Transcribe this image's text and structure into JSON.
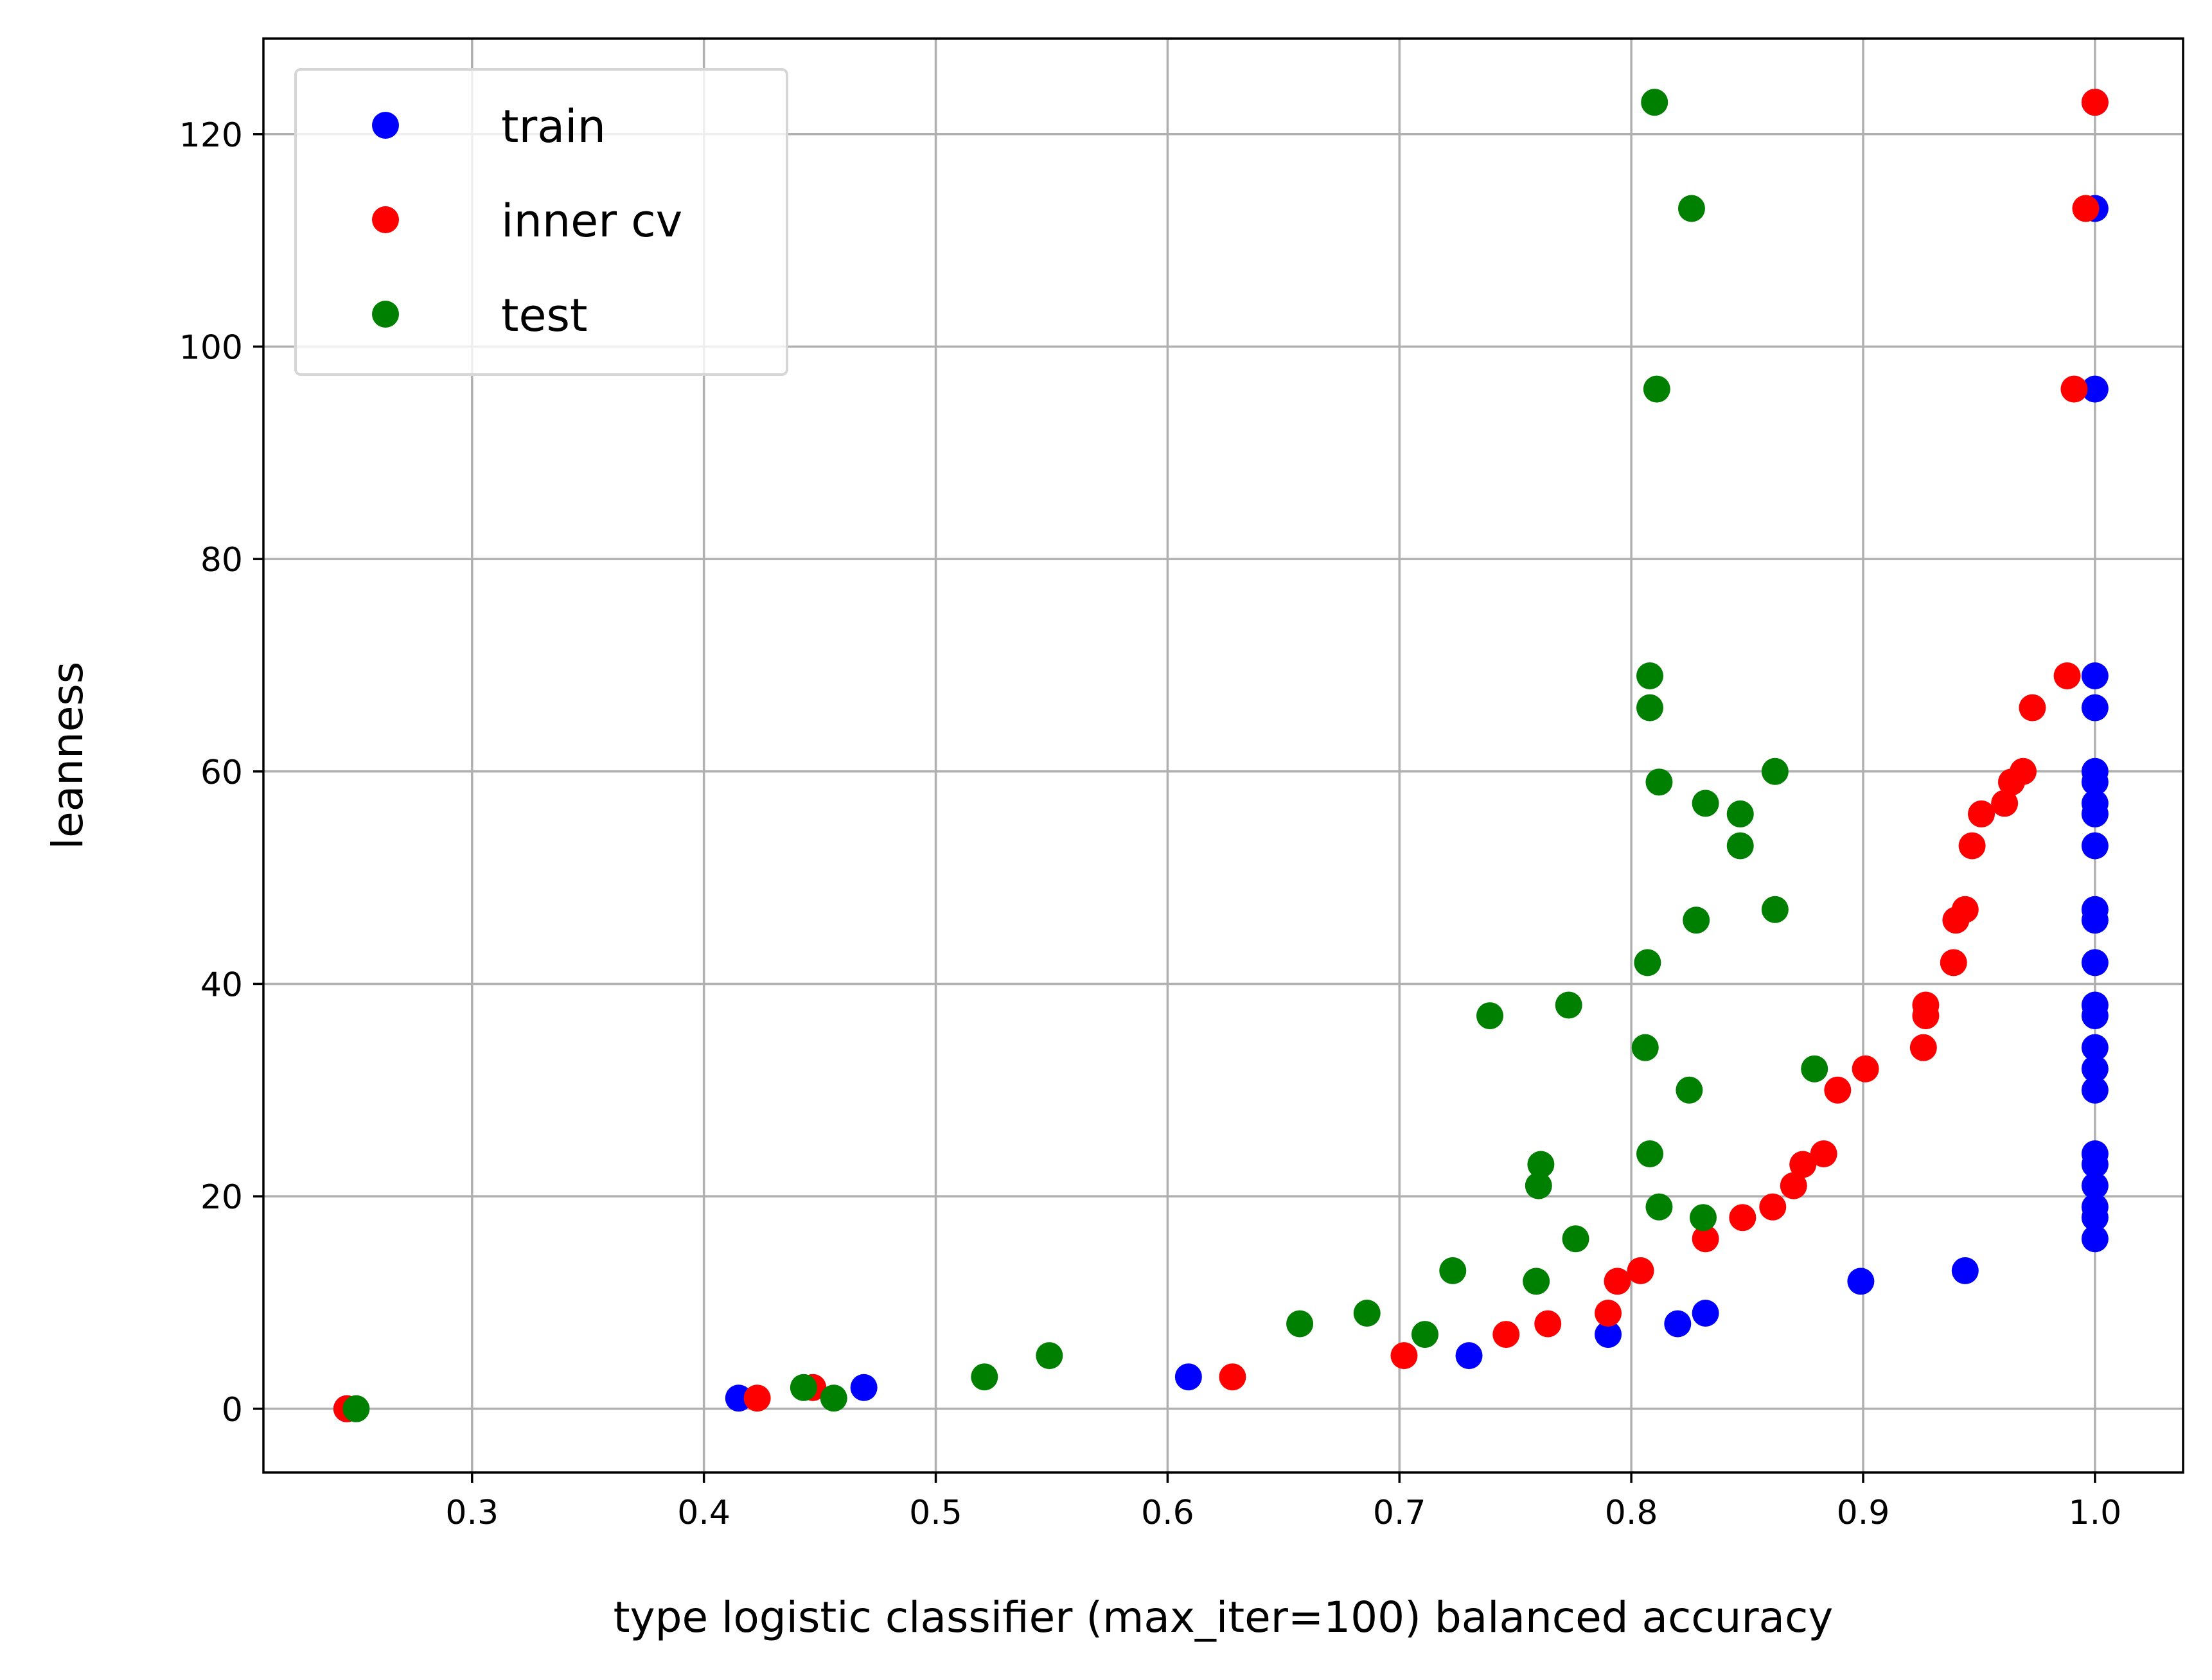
{
  "chart_data": {
    "type": "scatter",
    "xlabel": "type logistic classifier (max_iter=100) balanced accuracy",
    "ylabel": "leanness",
    "xlim": [
      0.21,
      1.038
    ],
    "ylim": [
      -6,
      129
    ],
    "xticks": [
      0.3,
      0.4,
      0.5,
      0.6,
      0.7,
      0.8,
      0.9,
      1.0
    ],
    "xtick_labels": [
      "0.3",
      "0.4",
      "0.5",
      "0.6",
      "0.7",
      "0.8",
      "0.9",
      "1.0"
    ],
    "yticks": [
      0,
      20,
      40,
      60,
      80,
      100,
      120
    ],
    "ytick_labels": [
      "0",
      "20",
      "40",
      "60",
      "80",
      "100",
      "120"
    ],
    "grid": true,
    "legend_position": "top-left",
    "series": [
      {
        "name": "train",
        "color": "#0000ff",
        "points": [
          [
            0.246,
            0
          ],
          [
            0.415,
            1
          ],
          [
            0.469,
            2
          ],
          [
            0.609,
            3
          ],
          [
            0.73,
            5
          ],
          [
            0.79,
            7
          ],
          [
            0.82,
            8
          ],
          [
            0.832,
            9
          ],
          [
            0.899,
            12
          ],
          [
            0.944,
            13
          ],
          [
            1.0,
            16
          ],
          [
            1.0,
            18
          ],
          [
            1.0,
            19
          ],
          [
            1.0,
            21
          ],
          [
            1.0,
            23
          ],
          [
            1.0,
            24
          ],
          [
            1.0,
            30
          ],
          [
            1.0,
            32
          ],
          [
            1.0,
            34
          ],
          [
            1.0,
            37
          ],
          [
            1.0,
            38
          ],
          [
            1.0,
            42
          ],
          [
            1.0,
            46
          ],
          [
            1.0,
            47
          ],
          [
            1.0,
            53
          ],
          [
            1.0,
            56
          ],
          [
            1.0,
            57
          ],
          [
            1.0,
            59
          ],
          [
            1.0,
            60
          ],
          [
            1.0,
            66
          ],
          [
            1.0,
            69
          ],
          [
            1.0,
            96
          ],
          [
            1.0,
            113
          ],
          [
            1.0,
            123
          ]
        ]
      },
      {
        "name": "inner cv",
        "color": "#ff0000",
        "points": [
          [
            0.246,
            0
          ],
          [
            0.423,
            1
          ],
          [
            0.447,
            2
          ],
          [
            0.628,
            3
          ],
          [
            0.702,
            5
          ],
          [
            0.746,
            7
          ],
          [
            0.764,
            8
          ],
          [
            0.79,
            9
          ],
          [
            0.794,
            12
          ],
          [
            0.804,
            13
          ],
          [
            0.832,
            16
          ],
          [
            0.848,
            18
          ],
          [
            0.861,
            19
          ],
          [
            0.87,
            21
          ],
          [
            0.874,
            23
          ],
          [
            0.883,
            24
          ],
          [
            0.889,
            30
          ],
          [
            0.901,
            32
          ],
          [
            0.926,
            34
          ],
          [
            0.927,
            37
          ],
          [
            0.927,
            38
          ],
          [
            0.939,
            42
          ],
          [
            0.94,
            46
          ],
          [
            0.944,
            47
          ],
          [
            0.947,
            53
          ],
          [
            0.951,
            56
          ],
          [
            0.961,
            57
          ],
          [
            0.964,
            59
          ],
          [
            0.969,
            60
          ],
          [
            0.973,
            66
          ],
          [
            0.988,
            69
          ],
          [
            0.991,
            96
          ],
          [
            0.996,
            113
          ],
          [
            1.0,
            123
          ]
        ]
      },
      {
        "name": "test",
        "color": "#008000",
        "points": [
          [
            0.25,
            0
          ],
          [
            0.456,
            1
          ],
          [
            0.443,
            2
          ],
          [
            0.521,
            3
          ],
          [
            0.549,
            5
          ],
          [
            0.711,
            7
          ],
          [
            0.657,
            8
          ],
          [
            0.686,
            9
          ],
          [
            0.759,
            12
          ],
          [
            0.723,
            13
          ],
          [
            0.776,
            16
          ],
          [
            0.831,
            18
          ],
          [
            0.812,
            19
          ],
          [
            0.76,
            21
          ],
          [
            0.761,
            23
          ],
          [
            0.808,
            24
          ],
          [
            0.825,
            30
          ],
          [
            0.879,
            32
          ],
          [
            0.806,
            34
          ],
          [
            0.739,
            37
          ],
          [
            0.773,
            38
          ],
          [
            0.807,
            42
          ],
          [
            0.828,
            46
          ],
          [
            0.862,
            47
          ],
          [
            0.847,
            53
          ],
          [
            0.847,
            56
          ],
          [
            0.832,
            57
          ],
          [
            0.812,
            59
          ],
          [
            0.862,
            60
          ],
          [
            0.808,
            66
          ],
          [
            0.808,
            69
          ],
          [
            0.811,
            96
          ],
          [
            0.826,
            113
          ],
          [
            0.81,
            123
          ]
        ]
      }
    ]
  }
}
